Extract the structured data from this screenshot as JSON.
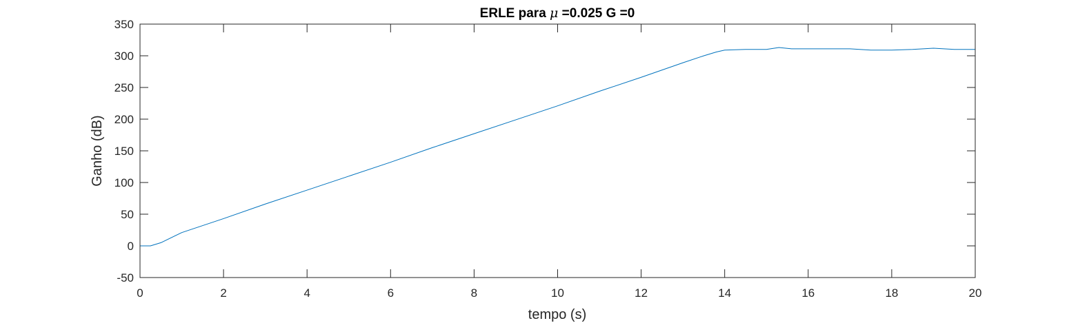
{
  "chart_data": {
    "type": "line",
    "title": {
      "prefix": "ERLE para ",
      "symbol": "μ",
      "suffix": " =0.025 G =0"
    },
    "xlabel": "tempo (s)",
    "ylabel": "Ganho (dB)",
    "xlim": [
      0,
      20
    ],
    "ylim": [
      -50,
      350
    ],
    "xticks": [
      "0",
      "2",
      "4",
      "6",
      "8",
      "10",
      "12",
      "14",
      "16",
      "18",
      "20"
    ],
    "yticks": [
      "-50",
      "0",
      "50",
      "100",
      "150",
      "200",
      "250",
      "300",
      "350"
    ],
    "grid": false,
    "legend": "none",
    "series": [
      {
        "color": "#0072bd",
        "x": [
          0,
          0.25,
          0.5,
          1,
          2,
          3,
          4,
          5,
          6,
          7,
          8,
          9,
          10,
          11,
          12,
          13,
          13.5,
          13.8,
          14,
          14.5,
          15,
          15.3,
          15.6,
          16,
          16.5,
          17,
          17.5,
          18,
          18.5,
          19,
          19.5,
          20
        ],
        "y": [
          0,
          0,
          5,
          21,
          43,
          66,
          88,
          110,
          132,
          155,
          177,
          199,
          221,
          244,
          266,
          289,
          300,
          306,
          309,
          310,
          310,
          313,
          311,
          311,
          311,
          311,
          309,
          309,
          310,
          312,
          310,
          310
        ]
      }
    ]
  }
}
